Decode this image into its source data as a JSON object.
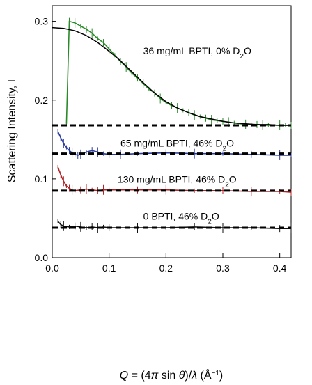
{
  "chart_data": {
    "type": "line",
    "title": "",
    "ylabel": "Scattering Intensity, I",
    "xlabel": {
      "parts": [
        "Q",
        " = (4",
        "π",
        " sin ",
        "θ",
        ")/",
        "λ",
        "  (Å",
        "−1",
        ")"
      ]
    },
    "xlim": [
      0.0,
      0.42
    ],
    "ylim": [
      0.0,
      0.32
    ],
    "x_ticks": [
      0.0,
      0.1,
      0.2,
      0.3,
      0.4
    ],
    "x_tick_labels": [
      "0.0",
      "0.1",
      "0.2",
      "0.3",
      "0.4"
    ],
    "y_ticks": [
      0.0,
      0.1,
      0.2,
      0.3
    ],
    "y_tick_labels": [
      "0.0",
      "0.1",
      "0.2",
      "0.3"
    ],
    "grid": false,
    "legend": "none",
    "series": [
      {
        "color": "#2a8a2a",
        "x": [
          0.025,
          0.03,
          0.04,
          0.05,
          0.06,
          0.07,
          0.08,
          0.09,
          0.1,
          0.11,
          0.12,
          0.13,
          0.14,
          0.15,
          0.16,
          0.17,
          0.18,
          0.19,
          0.2,
          0.21,
          0.22,
          0.23,
          0.24,
          0.25,
          0.26,
          0.27,
          0.28,
          0.29,
          0.3,
          0.31,
          0.32,
          0.33,
          0.34,
          0.35,
          0.36,
          0.37,
          0.38,
          0.39,
          0.4,
          0.41,
          0.42
        ],
        "y": [
          0.17,
          0.3,
          0.298,
          0.294,
          0.29,
          0.285,
          0.278,
          0.273,
          0.265,
          0.257,
          0.249,
          0.242,
          0.234,
          0.228,
          0.221,
          0.214,
          0.209,
          0.202,
          0.197,
          0.193,
          0.19,
          0.187,
          0.184,
          0.181,
          0.179,
          0.177,
          0.175,
          0.174,
          0.173,
          0.172,
          0.171,
          0.17,
          0.169,
          0.169,
          0.169,
          0.168,
          0.168,
          0.168,
          0.168,
          0.168,
          0.168
        ]
      },
      {
        "color": "#2a3a9c",
        "x": [
          0.01,
          0.015,
          0.02,
          0.025,
          0.03,
          0.035,
          0.04,
          0.045,
          0.05,
          0.06,
          0.07,
          0.08,
          0.09,
          0.1,
          0.12,
          0.15,
          0.2,
          0.25,
          0.3,
          0.35,
          0.4,
          0.42
        ],
        "y": [
          0.16,
          0.152,
          0.145,
          0.14,
          0.136,
          0.133,
          0.131,
          0.13,
          0.131,
          0.134,
          0.136,
          0.134,
          0.132,
          0.131,
          0.131,
          0.132,
          0.133,
          0.132,
          0.132,
          0.131,
          0.13,
          0.13
        ]
      },
      {
        "color": "#b02428",
        "x": [
          0.01,
          0.015,
          0.02,
          0.025,
          0.03,
          0.035,
          0.04,
          0.05,
          0.06,
          0.07,
          0.08,
          0.09,
          0.1,
          0.15,
          0.2,
          0.25,
          0.3,
          0.35,
          0.4,
          0.42
        ],
        "y": [
          0.115,
          0.105,
          0.097,
          0.091,
          0.088,
          0.086,
          0.085,
          0.086,
          0.087,
          0.086,
          0.085,
          0.086,
          0.086,
          0.086,
          0.086,
          0.085,
          0.085,
          0.084,
          0.084,
          0.083
        ]
      },
      {
        "color": "#111111",
        "x": [
          0.01,
          0.015,
          0.02,
          0.03,
          0.04,
          0.05,
          0.06,
          0.07,
          0.08,
          0.09,
          0.1,
          0.15,
          0.2,
          0.25,
          0.3,
          0.35,
          0.4,
          0.42
        ],
        "y": [
          0.046,
          0.042,
          0.04,
          0.039,
          0.04,
          0.039,
          0.038,
          0.039,
          0.038,
          0.039,
          0.038,
          0.038,
          0.038,
          0.039,
          0.038,
          0.038,
          0.037,
          0.037
        ]
      }
    ],
    "reference_lines": [
      {
        "style": "dashed",
        "y": 0.168
      },
      {
        "style": "dashed",
        "y": 0.132
      },
      {
        "style": "dashed",
        "y": 0.085
      },
      {
        "style": "dashed",
        "y": 0.038
      }
    ],
    "fit_curve": {
      "color": "#000000",
      "x": [
        0.0,
        0.02,
        0.04,
        0.06,
        0.08,
        0.1,
        0.12,
        0.14,
        0.16,
        0.18,
        0.2,
        0.22,
        0.24,
        0.26,
        0.28,
        0.3,
        0.32,
        0.34,
        0.36,
        0.38,
        0.4,
        0.42
      ],
      "y": [
        0.292,
        0.291,
        0.288,
        0.282,
        0.273,
        0.262,
        0.25,
        0.236,
        0.222,
        0.209,
        0.198,
        0.19,
        0.184,
        0.179,
        0.176,
        0.173,
        0.171,
        0.17,
        0.169,
        0.169,
        0.168,
        0.168
      ]
    },
    "annotations": [
      {
        "text": "36 mg/mL BPTI, 0% D",
        "sub": "2",
        "tail": "O",
        "x": 0.16,
        "y": 0.258
      },
      {
        "text": "65 mg/mL BPTI, 46% D",
        "sub": "2",
        "tail": "O",
        "x": 0.12,
        "y": 0.141
      },
      {
        "text": "130 mg/mL BPTI, 46% D",
        "sub": "2",
        "tail": "O",
        "x": 0.115,
        "y": 0.095
      },
      {
        "text": "0 BPTI, 46% D",
        "sub": "2",
        "tail": "O",
        "x": 0.16,
        "y": 0.048
      }
    ]
  }
}
